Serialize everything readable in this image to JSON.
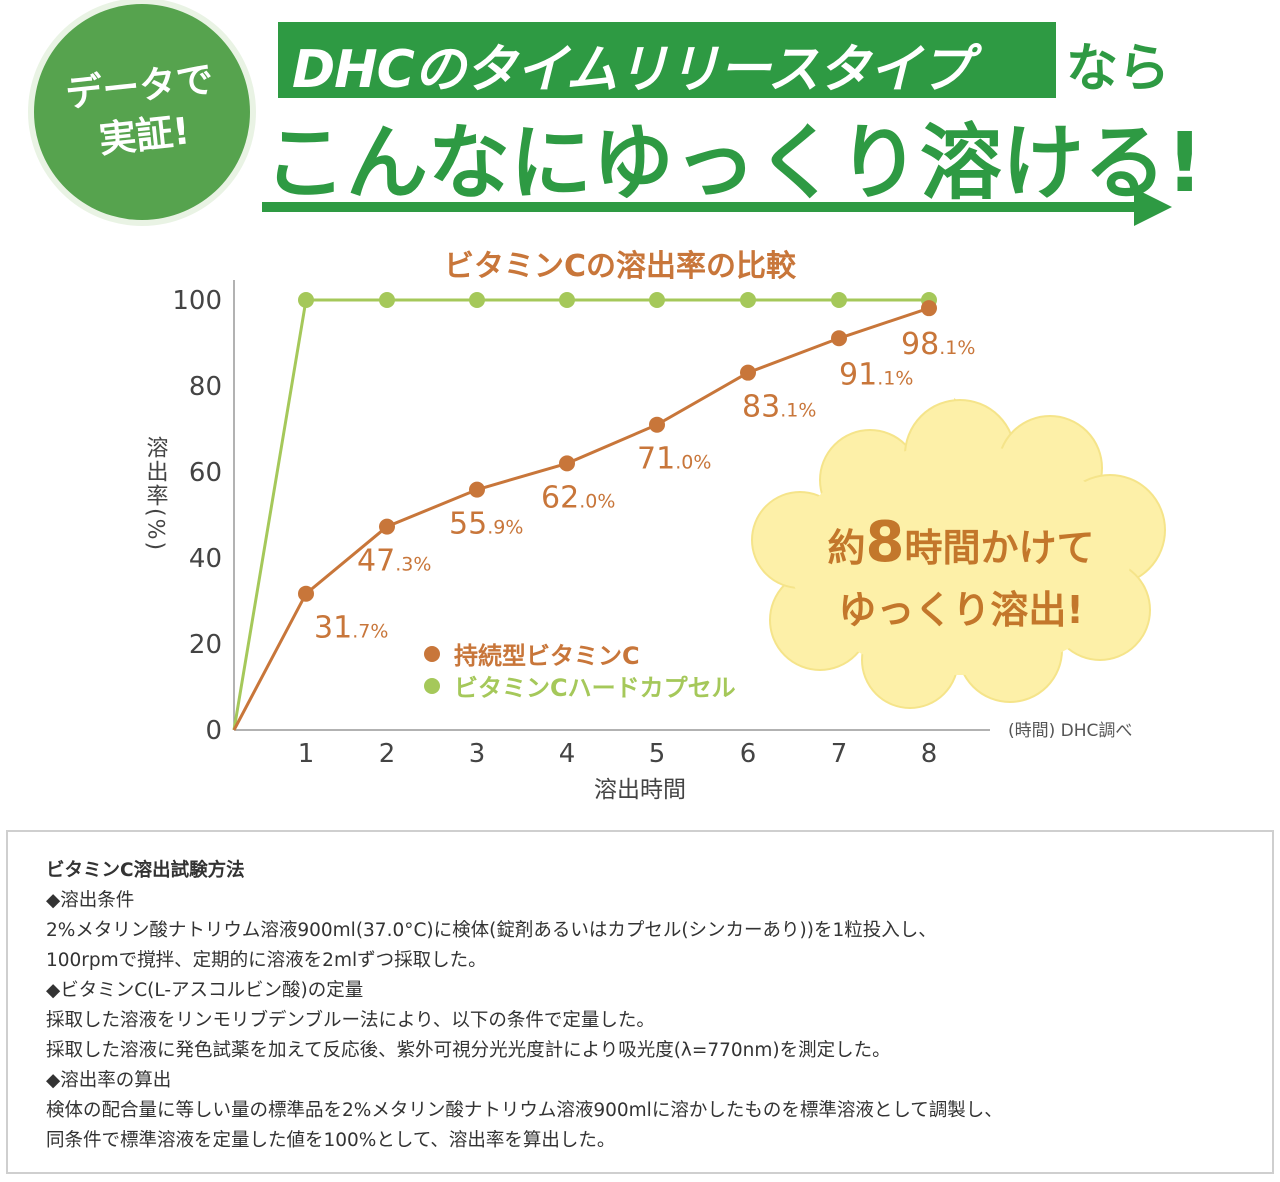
{
  "badge": {
    "line1": "データで",
    "line2": "実証!"
  },
  "headline": {
    "boxed": "DHCのタイムリリースタイプ",
    "tail": "なら",
    "line2": "こんなにゆっくり溶ける!"
  },
  "callout": {
    "pre": "約",
    "num": "8",
    "post": "時間かけて",
    "line2": "ゆっくり溶出!"
  },
  "colors": {
    "orange": "#c8763a",
    "green": "#a5c85a",
    "brand_green": "#2e9a43",
    "cloud": "#fdf0a8"
  },
  "chart_data": {
    "type": "line",
    "title": "ビタミンCの溶出率の比較",
    "xlabel": "溶出時間",
    "ylabel": "溶出率(%)",
    "x_unit_note": "(時間) DHC調べ",
    "x": [
      0,
      1,
      2,
      3,
      4,
      5,
      6,
      7,
      8
    ],
    "x_ticks": [
      "1",
      "2",
      "3",
      "4",
      "5",
      "6",
      "7",
      "8"
    ],
    "y_ticks": [
      "0",
      "20",
      "40",
      "60",
      "80",
      "100"
    ],
    "ylim": [
      0,
      100
    ],
    "xlim": [
      0,
      8
    ],
    "grid": false,
    "legend_position": "center",
    "series": [
      {
        "name": "持続型ビタミンC",
        "color": "#c8763a",
        "values": [
          0,
          31.7,
          47.3,
          55.9,
          62.0,
          71.0,
          83.1,
          91.1,
          98.1
        ],
        "labels": [
          "",
          "31.7%",
          "47.3%",
          "55.9%",
          "62.0%",
          "71.0%",
          "83.1%",
          "91.1%",
          "98.1%"
        ]
      },
      {
        "name": "ビタミンCハードカプセル",
        "color": "#a5c85a",
        "values": [
          0,
          100,
          100,
          100,
          100,
          100,
          100,
          100,
          100
        ]
      }
    ]
  },
  "method": {
    "title": "ビタミンC溶出試験方法",
    "lines": [
      "◆溶出条件",
      "2%メタリン酸ナトリウム溶液900ml(37.0°C)に検体(錠剤あるいはカプセル(シンカーあり))を1粒投入し、",
      "100rpmで撹拌、定期的に溶液を2mlずつ採取した。",
      "◆ビタミンC(L-アスコルビン酸)の定量",
      "採取した溶液をリンモリブデンブルー法により、以下の条件で定量した。",
      "採取した溶液に発色試薬を加えて反応後、紫外可視分光光度計により吸光度(λ=770nm)を測定した。",
      "◆溶出率の算出",
      "検体の配合量に等しい量の標準品を2%メタリン酸ナトリウム溶液900mlに溶かしたものを標準溶液として調製し、",
      "同条件で標準溶液を定量した値を100%として、溶出率を算出した。"
    ]
  }
}
